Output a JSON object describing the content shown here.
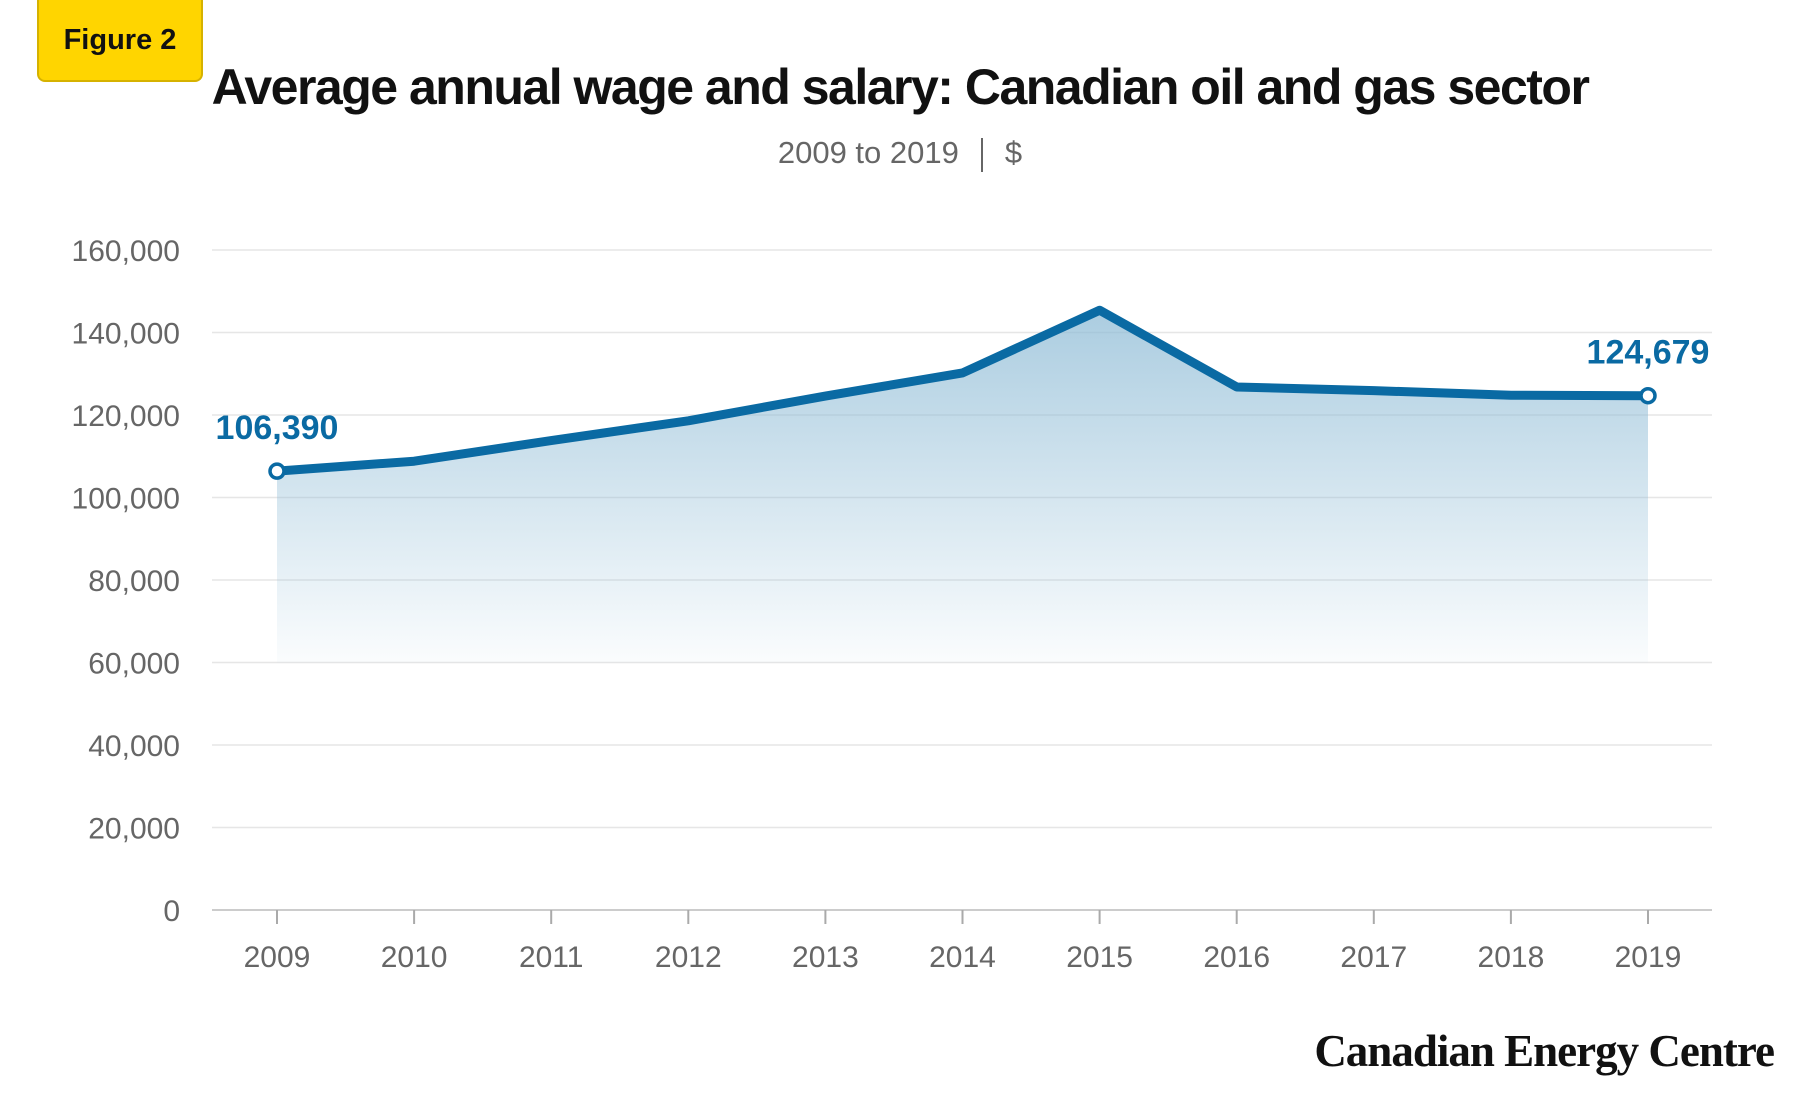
{
  "badge": {
    "label": "Figure 2"
  },
  "subtitle": {
    "period": "2009 to 2019",
    "unit": "$"
  },
  "colors": {
    "line": "#0a6aa3",
    "area": "#8fbcd6",
    "grid": "#e6e6e6",
    "tick": "#666666",
    "badge": "#FFD500"
  },
  "logo": {
    "text": "Canadian Energy Centre"
  },
  "chart_data": {
    "type": "area",
    "title": "Average annual wage and salary: Canadian oil and gas sector",
    "subtitle": "2009 to 2019 | $",
    "xlabel": "",
    "ylabel": "",
    "categories": [
      "2009",
      "2010",
      "2011",
      "2012",
      "2013",
      "2014",
      "2015",
      "2016",
      "2017",
      "2018",
      "2019"
    ],
    "series": [
      {
        "values": [
          106390,
          108800,
          113800,
          118600,
          124600,
          130200,
          145400,
          126800,
          125900,
          124800,
          124679
        ]
      }
    ],
    "ylim": [
      0,
      160000
    ],
    "yticks": [
      0,
      20000,
      40000,
      60000,
      80000,
      100000,
      120000,
      140000,
      160000
    ],
    "ytick_labels": [
      "0",
      "20,000",
      "40,000",
      "60,000",
      "80,000",
      "100,000",
      "120,000",
      "140,000",
      "160,000"
    ],
    "area_baseline": 60000,
    "grid": true,
    "legend": "none",
    "annotations": [
      {
        "category": "2009",
        "text": "106,390"
      },
      {
        "category": "2019",
        "text": "124,679"
      }
    ]
  }
}
